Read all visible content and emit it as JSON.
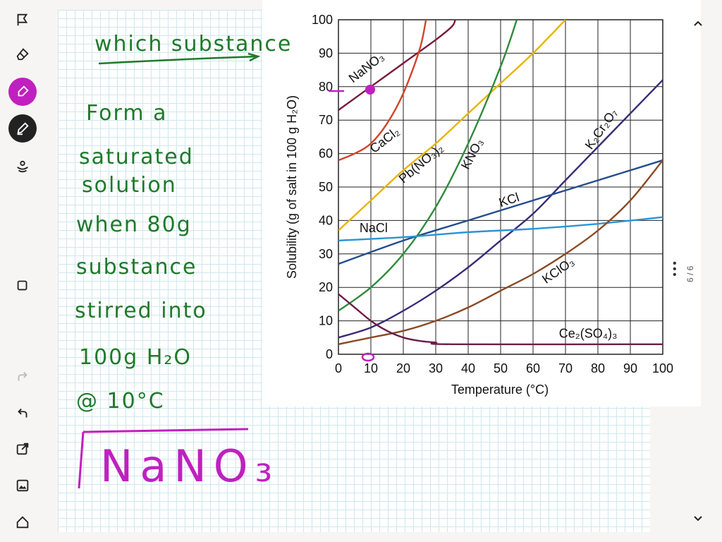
{
  "toolbar": {
    "items": [
      {
        "icon": "pointer-icon"
      },
      {
        "icon": "eraser-icon"
      },
      {
        "icon": "highlighter-icon",
        "active": true,
        "color": "#c020c0"
      },
      {
        "icon": "pen-icon",
        "active": true,
        "color": "#222222"
      },
      {
        "icon": "lasso-icon"
      },
      {
        "icon": "shape-icon"
      },
      {
        "icon": "redo-icon"
      },
      {
        "icon": "undo-icon"
      },
      {
        "icon": "export-icon"
      },
      {
        "icon": "image-icon"
      },
      {
        "icon": "home-icon"
      }
    ]
  },
  "page_indicator": {
    "text": "6 / 6"
  },
  "handwriting": {
    "title": "which substance",
    "lines": [
      "Form a",
      "saturated",
      "solution",
      "when 80g",
      "substance",
      "stirred into",
      "100g H₂O",
      "@ 10°C"
    ],
    "answer": "NaNO₃",
    "color": "#1f7a2a",
    "answer_color": "#c020c0"
  },
  "chart_data": {
    "type": "line",
    "xlabel": "Temperature (°C)",
    "ylabel": "Solubility (g of salt in 100 g H₂O)",
    "xlim": [
      0,
      100
    ],
    "ylim": [
      0,
      100
    ],
    "x_ticks": [
      0,
      10,
      20,
      30,
      40,
      50,
      60,
      70,
      80,
      90,
      100
    ],
    "y_ticks": [
      0,
      10,
      20,
      30,
      40,
      50,
      60,
      70,
      80,
      90,
      100
    ],
    "grid": true,
    "series": [
      {
        "name": "NaNO₃",
        "color": "#7a1a3a",
        "points": [
          [
            0,
            73
          ],
          [
            10,
            80
          ],
          [
            20,
            87
          ],
          [
            30,
            94
          ],
          [
            35,
            98
          ],
          [
            36,
            100
          ]
        ]
      },
      {
        "name": "CaCl₂",
        "color": "#d0442a",
        "points": [
          [
            0,
            58
          ],
          [
            5,
            60
          ],
          [
            10,
            63
          ],
          [
            15,
            69
          ],
          [
            20,
            78
          ],
          [
            25,
            91
          ],
          [
            27,
            100
          ]
        ]
      },
      {
        "name": "Pb(NO₃)₂",
        "color": "#e8b400",
        "points": [
          [
            0,
            37
          ],
          [
            10,
            46
          ],
          [
            20,
            55
          ],
          [
            30,
            63
          ],
          [
            40,
            72
          ],
          [
            50,
            81
          ],
          [
            60,
            90
          ],
          [
            70,
            100
          ]
        ]
      },
      {
        "name": "KNO₃",
        "color": "#2e8b3a",
        "points": [
          [
            0,
            13
          ],
          [
            10,
            20
          ],
          [
            20,
            30
          ],
          [
            30,
            44
          ],
          [
            40,
            63
          ],
          [
            50,
            86
          ],
          [
            55,
            100
          ]
        ]
      },
      {
        "name": "K₂Cr₂O₇",
        "color": "#3a2a78",
        "points": [
          [
            0,
            5
          ],
          [
            10,
            8
          ],
          [
            20,
            13
          ],
          [
            30,
            19
          ],
          [
            40,
            26
          ],
          [
            50,
            34
          ],
          [
            60,
            42
          ],
          [
            70,
            52
          ],
          [
            80,
            62
          ],
          [
            90,
            72
          ],
          [
            100,
            82
          ]
        ]
      },
      {
        "name": "KCl",
        "color": "#234c8c",
        "points": [
          [
            0,
            27
          ],
          [
            20,
            34
          ],
          [
            40,
            40
          ],
          [
            60,
            46
          ],
          [
            80,
            52
          ],
          [
            100,
            58
          ]
        ]
      },
      {
        "name": "NaCl",
        "color": "#2a95d5",
        "points": [
          [
            0,
            34
          ],
          [
            20,
            35
          ],
          [
            40,
            36.5
          ],
          [
            60,
            37.5
          ],
          [
            80,
            39
          ],
          [
            100,
            41
          ]
        ]
      },
      {
        "name": "KClO₃",
        "color": "#8a4a24",
        "points": [
          [
            0,
            3
          ],
          [
            10,
            5
          ],
          [
            20,
            7
          ],
          [
            30,
            10
          ],
          [
            40,
            14
          ],
          [
            50,
            19
          ],
          [
            60,
            24
          ],
          [
            70,
            30
          ],
          [
            80,
            37
          ],
          [
            90,
            46
          ],
          [
            100,
            58
          ]
        ]
      },
      {
        "name": "Ce₂(SO₄)₃",
        "color": "#6a1e4a",
        "points": [
          [
            0,
            18
          ],
          [
            5,
            14
          ],
          [
            10,
            10
          ],
          [
            15,
            7
          ],
          [
            20,
            5
          ],
          [
            25,
            4
          ],
          [
            30,
            3.5
          ],
          [
            35,
            3
          ],
          [
            100,
            3
          ]
        ]
      }
    ]
  }
}
